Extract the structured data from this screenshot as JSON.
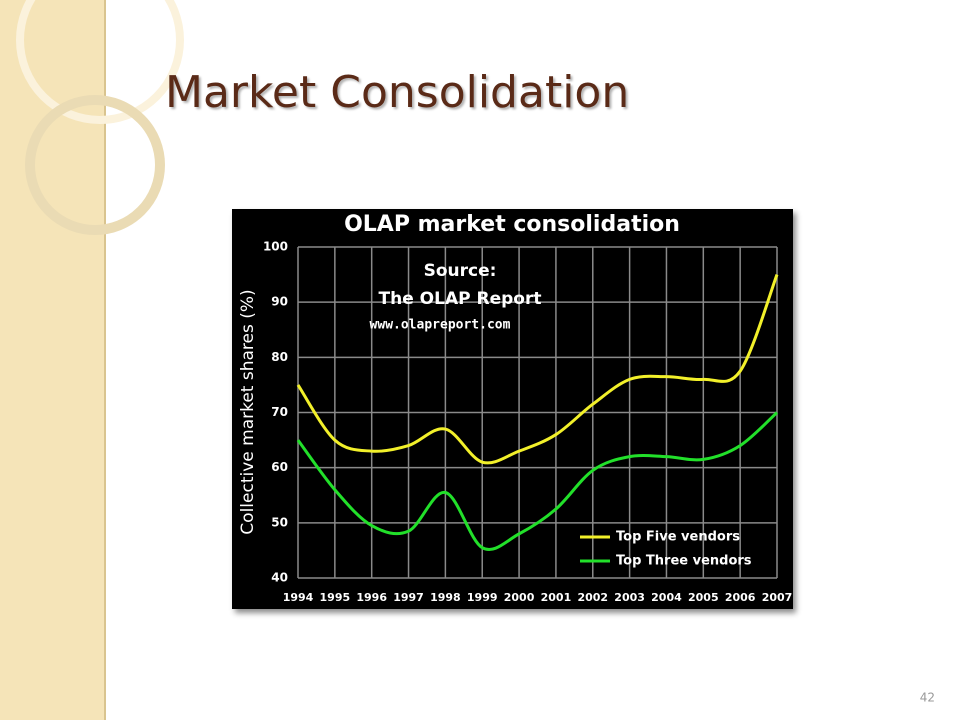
{
  "slide_title": "Market Consolidation",
  "page_number": "42",
  "chart_data": {
    "type": "line",
    "title": "OLAP market consolidation",
    "annotations": [
      "Source:",
      "The OLAP Report",
      "www.olapreport.com"
    ],
    "y_label": "Collective market shares (%)",
    "x": [
      1994,
      1995,
      1996,
      1997,
      1998,
      1999,
      2000,
      2001,
      2002,
      2003,
      2004,
      2005,
      2006,
      2007
    ],
    "xlim": [
      1994,
      2007
    ],
    "xticks": [
      1994,
      1995,
      1996,
      1997,
      1998,
      1999,
      2000,
      2001,
      2002,
      2003,
      2004,
      2005,
      2006,
      2007
    ],
    "ylim": [
      40,
      100
    ],
    "yticks": [
      40,
      50,
      60,
      70,
      80,
      90,
      100
    ],
    "grid": true,
    "legend": "lower-right",
    "series": [
      {
        "name": "Top Five vendors",
        "color": "#f2f02a",
        "values": [
          75,
          65,
          63,
          64,
          67,
          61,
          63,
          66,
          71.5,
          76,
          76.5,
          76,
          77.5,
          95
        ]
      },
      {
        "name": "Top Three vendors",
        "color": "#22e02a",
        "values": [
          65,
          56,
          49.5,
          48.5,
          55.5,
          45.5,
          48,
          52.5,
          59.5,
          62,
          62,
          61.5,
          64,
          70
        ]
      }
    ]
  }
}
